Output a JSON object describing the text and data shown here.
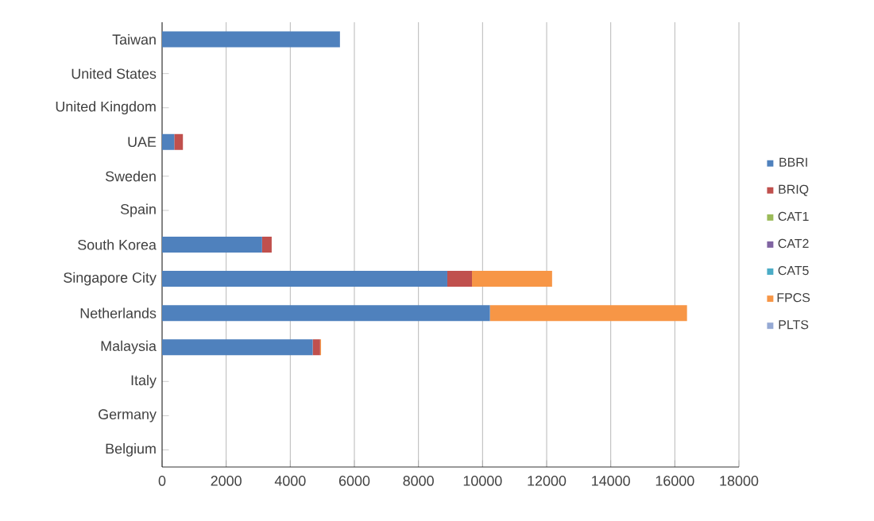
{
  "chart_data": {
    "type": "bar",
    "orientation": "horizontal",
    "stacked": true,
    "categories": [
      "Taiwan",
      "United States",
      "United Kingdom",
      "UAE",
      "Sweden",
      "Spain",
      "South Korea",
      "Singapore City",
      "Netherlands",
      "Malaysia",
      "Italy",
      "Germany",
      "Belgium"
    ],
    "series": [
      {
        "name": "BBRI",
        "color": "#4f81bd",
        "values": [
          5550,
          0,
          0,
          380,
          0,
          0,
          3120,
          8900,
          10230,
          4700,
          0,
          0,
          0
        ]
      },
      {
        "name": "BRIQ",
        "color": "#c0504d",
        "values": [
          0,
          0,
          0,
          270,
          0,
          0,
          300,
          770,
          0,
          230,
          0,
          0,
          0
        ]
      },
      {
        "name": "CAT1",
        "color": "#9bbb59",
        "values": [
          0,
          0,
          0,
          0,
          0,
          0,
          0,
          0,
          0,
          0,
          0,
          0,
          0
        ]
      },
      {
        "name": "CAT2",
        "color": "#8064a2",
        "values": [
          0,
          0,
          0,
          0,
          0,
          0,
          0,
          0,
          0,
          0,
          0,
          0,
          0
        ]
      },
      {
        "name": "CAT5",
        "color": "#4bacc6",
        "values": [
          0,
          0,
          0,
          0,
          0,
          0,
          0,
          0,
          0,
          0,
          0,
          0,
          0
        ]
      },
      {
        "name": "FPCS",
        "color": "#f79646",
        "values": [
          0,
          0,
          0,
          0,
          0,
          0,
          0,
          2500,
          6150,
          30,
          0,
          0,
          0
        ]
      },
      {
        "name": "PLTS",
        "color": "#95a9d4",
        "values": [
          0,
          0,
          0,
          0,
          0,
          0,
          0,
          0,
          0,
          0,
          0,
          0,
          0
        ]
      }
    ],
    "xlim": [
      0,
      18000
    ],
    "xticks": [
      0,
      2000,
      4000,
      6000,
      8000,
      10000,
      12000,
      14000,
      16000,
      18000
    ],
    "grid": "x",
    "legend": "right"
  }
}
